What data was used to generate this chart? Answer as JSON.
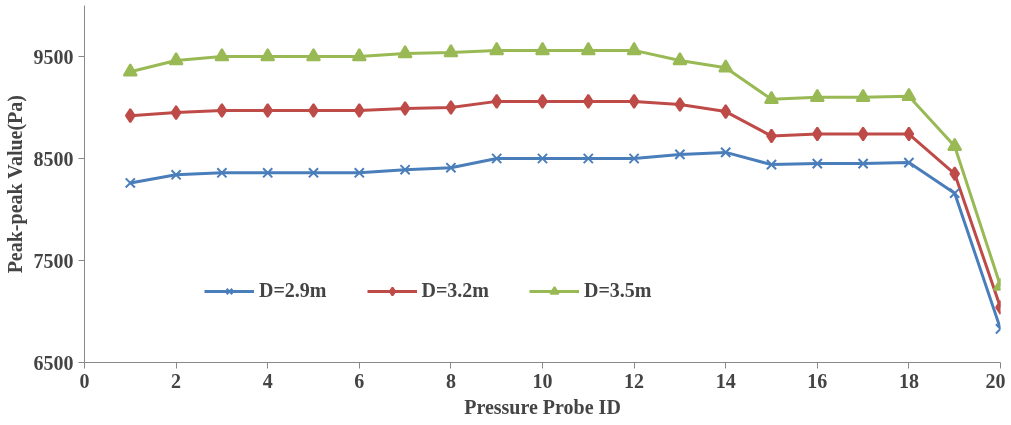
{
  "chart_data": {
    "type": "line",
    "xlabel": "Pressure Probe ID",
    "ylabel": "Peak-peak Value(Pa)",
    "x": [
      1,
      2,
      3,
      4,
      5,
      6,
      7,
      8,
      9,
      10,
      11,
      12,
      13,
      14,
      15,
      16,
      17,
      18,
      19,
      20
    ],
    "series": [
      {
        "name": "D=2.9m",
        "color": "#4a7ebb",
        "marker": "cross",
        "values": [
          8260,
          8340,
          8360,
          8360,
          8360,
          8360,
          8390,
          8410,
          8500,
          8500,
          8500,
          8500,
          8540,
          8560,
          8440,
          8450,
          8450,
          8460,
          8160,
          6830
        ]
      },
      {
        "name": "D=3.2m",
        "color": "#be4b48",
        "marker": "diamond",
        "values": [
          8920,
          8950,
          8970,
          8970,
          8970,
          8970,
          8990,
          9000,
          9060,
          9060,
          9060,
          9060,
          9030,
          8960,
          8720,
          8740,
          8740,
          8740,
          8350,
          7040
        ]
      },
      {
        "name": "D=3.5m",
        "color": "#98b954",
        "marker": "triangle",
        "values": [
          9350,
          9460,
          9500,
          9500,
          9500,
          9500,
          9530,
          9540,
          9560,
          9560,
          9560,
          9560,
          9460,
          9390,
          9080,
          9100,
          9100,
          9110,
          8620,
          7250
        ]
      }
    ],
    "xlim": [
      0,
      20
    ],
    "xticks": [
      0,
      2,
      4,
      6,
      8,
      10,
      12,
      14,
      16,
      18,
      20
    ],
    "ylim": [
      6500,
      10000
    ],
    "yticks": [
      6500,
      7500,
      8500,
      9500
    ],
    "grid": false,
    "legend": "bottom"
  }
}
